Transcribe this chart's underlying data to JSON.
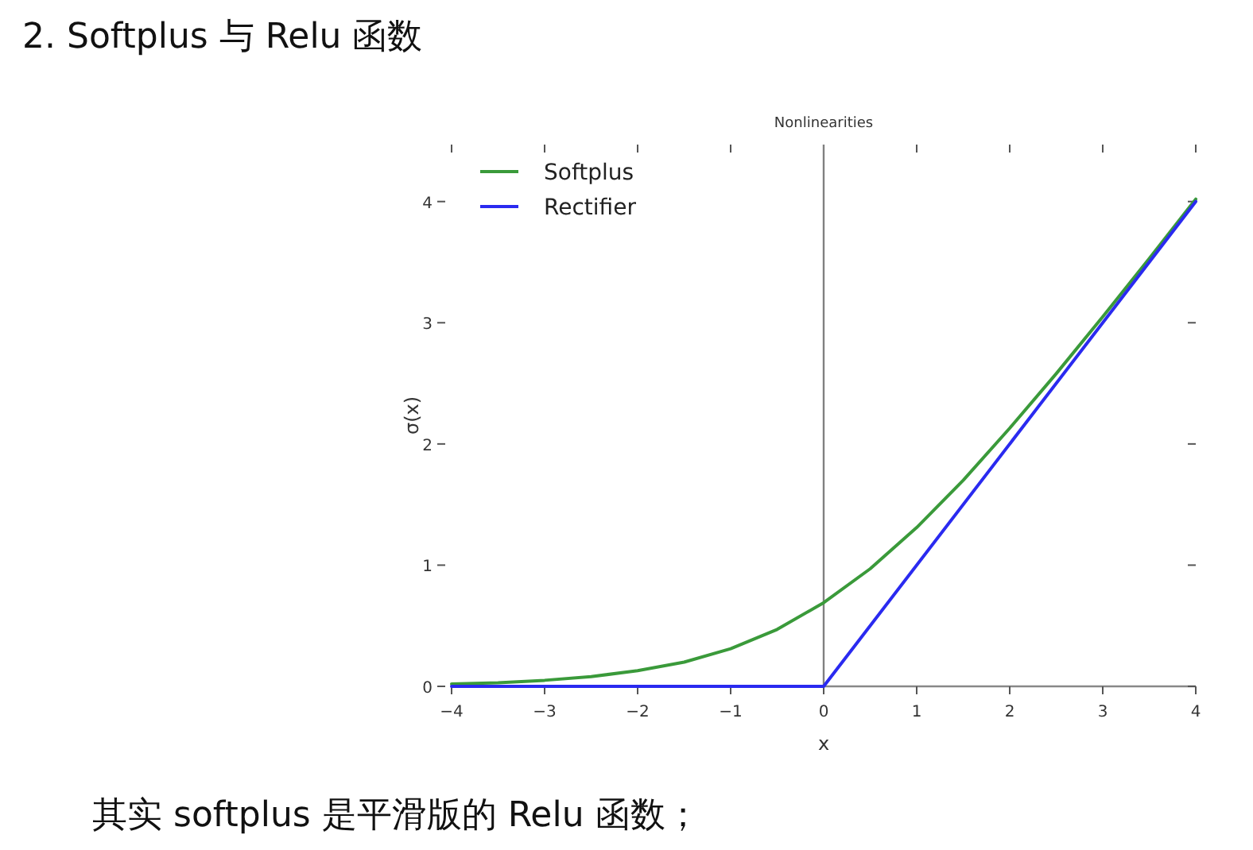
{
  "chart_data": {
    "type": "line",
    "title": "2. Softplus 与 Relu 函数",
    "subtitle": "Nonlinearities",
    "xlabel": "x",
    "ylabel": "σ(x)",
    "annotations": [
      "其实 softplus 是平滑版的 Relu 函数；"
    ],
    "xlim": [
      -4,
      4
    ],
    "xticks": [
      {
        "value": -4,
        "label": "−4"
      },
      {
        "value": -3,
        "label": "−3"
      },
      {
        "value": -2,
        "label": "−2"
      },
      {
        "value": -1,
        "label": "−1"
      },
      0,
      1,
      2,
      3,
      4
    ],
    "ylim": [
      0,
      4.47
    ],
    "yticks": [
      0,
      1,
      2,
      3,
      4
    ],
    "ref_lines": [
      {
        "axis": "x",
        "value": 0,
        "color": "#808080"
      }
    ],
    "legend": "top left",
    "grid": false,
    "marker": "none",
    "line_style": "solid",
    "series": [
      {
        "name": "Softplus",
        "color": "#3a9a3a",
        "x": [
          -4,
          -3.5,
          -3,
          -2.5,
          -2,
          -1.5,
          -1,
          -0.5,
          0,
          0.5,
          1,
          1.5,
          2,
          2.5,
          3,
          3.5,
          4
        ],
        "values": [
          0.02,
          0.03,
          0.05,
          0.08,
          0.13,
          0.2,
          0.31,
          0.47,
          0.69,
          0.97,
          1.31,
          1.7,
          2.13,
          2.58,
          3.05,
          3.53,
          4.02
        ]
      },
      {
        "name": "Rectifier",
        "color": "#2a2af0",
        "x": [
          -4,
          0,
          4
        ],
        "values": [
          0,
          0,
          4
        ]
      }
    ]
  }
}
